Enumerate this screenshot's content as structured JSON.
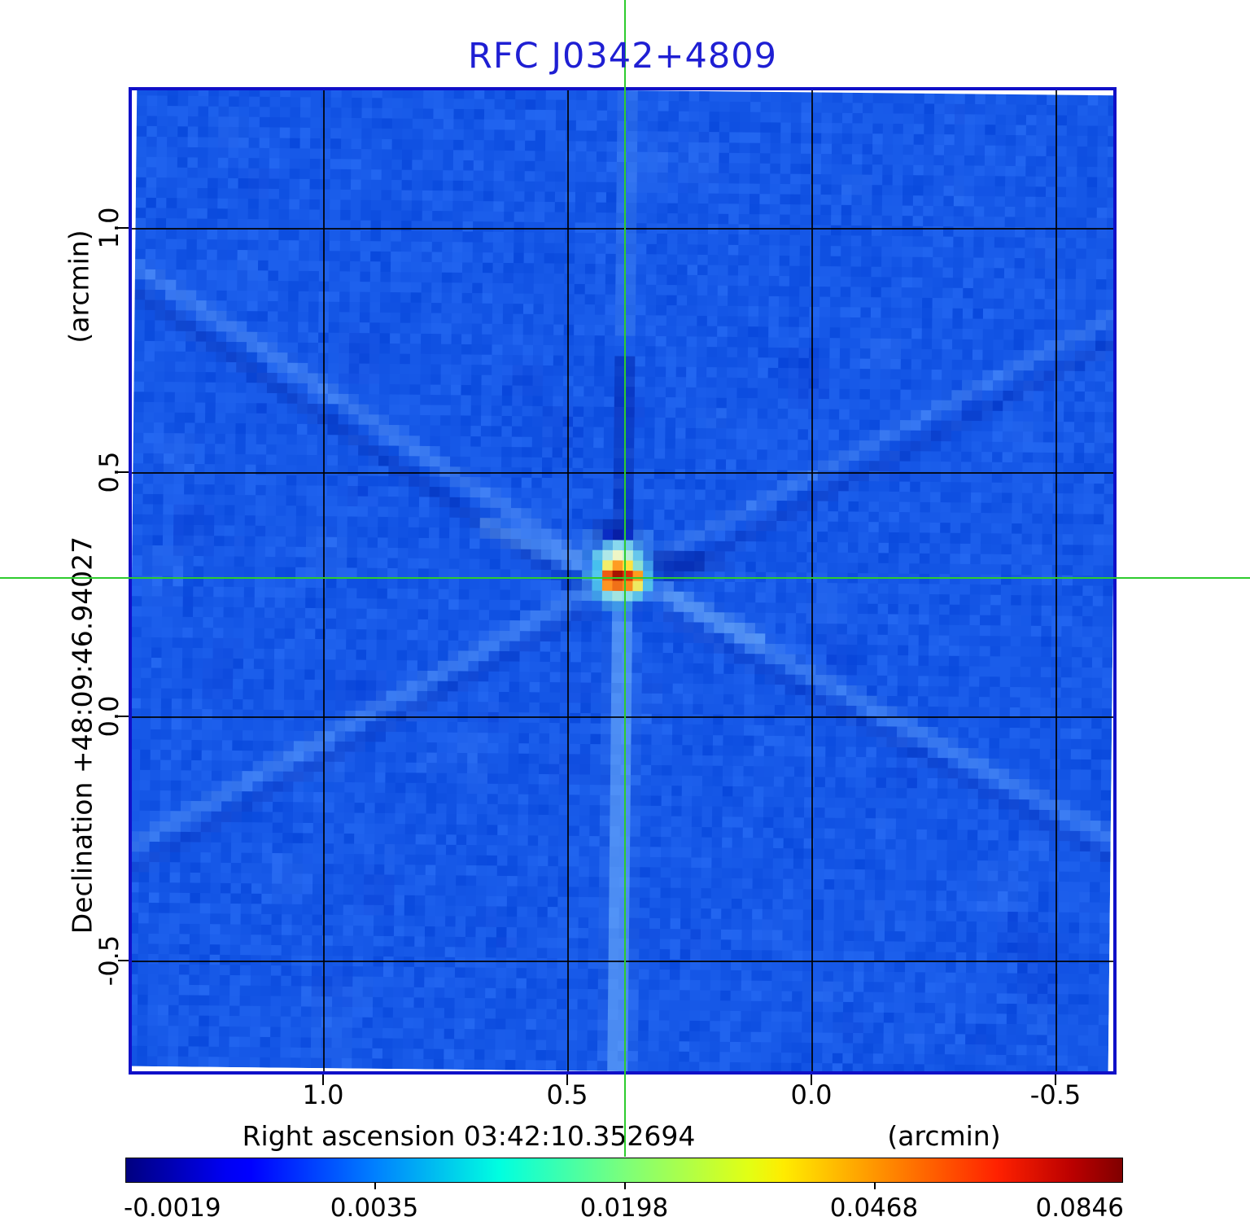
{
  "title": "RFC J0342+4809",
  "plot": {
    "x_axis": {
      "label": "Right ascension  03:42:10.352694",
      "unit": "(arcmin)",
      "ticks": [
        "1.0",
        "0.5",
        "0.0",
        "-0.5"
      ]
    },
    "y_axis": {
      "label": "Declination  +48:09:46.94027",
      "unit": "(arcmin)",
      "ticks": [
        "1.0",
        "0.5",
        "0.0",
        "-0.5"
      ]
    }
  },
  "colorbar": {
    "ticks": [
      "-0.0019",
      "0.0035",
      "0.0198",
      "0.0468",
      "0.0846"
    ]
  },
  "colors": {
    "title_blue": "#1f1fd3",
    "frame_blue": "#1010c8",
    "crosshair_green": "#2ecc2e",
    "grid_black": "#000000",
    "field_dark": "#0848dc",
    "field_light": "#2468f2",
    "negative_navy": "#0020a8",
    "source_core_dark_red": "#a81400",
    "colorbar_gradient": [
      "#000080",
      "#0000f3",
      "#0000ff",
      "#0080ff",
      "#00ffe0",
      "#7bff7b",
      "#e2ff14",
      "#ffec00",
      "#ff9700",
      "#ff2100",
      "#ba0000",
      "#800000"
    ]
  },
  "chart_data": {
    "type": "heatmap",
    "title": "RFC J0342+4809",
    "xlabel": "Right ascension  03:42:10.352694  (arcmin)",
    "ylabel": "Declination  +48:09:46.94027  (arcmin)",
    "x_ticks_arcmin": [
      1.0,
      0.5,
      0.0,
      -0.5
    ],
    "y_ticks_arcmin": [
      1.0,
      0.5,
      0.0,
      -0.5
    ],
    "x_range_arcmin": [
      1.39,
      -0.62
    ],
    "y_range_arcmin": [
      -0.73,
      1.28
    ],
    "grid": true,
    "colormap": "jet",
    "colorbar_tick_values": [
      -0.0019,
      0.0035,
      0.0198,
      0.0468,
      0.0846
    ],
    "colorbar_orientation": "horizontal-bottom",
    "intensity_stretch": "non-linear (equal-spaced ticks with increasing values)",
    "peak_source": {
      "x_arcmin": 0.38,
      "y_arcmin": 0.28,
      "peak_value": 0.0846,
      "marked_by": "full-length green crosshair lines"
    },
    "background_description": "uniform blue noise field near 0 Jy with X-shaped sidelobe rays, a vertical stripe through the source, and dark-blue negative bowls just above and right of the peak"
  }
}
